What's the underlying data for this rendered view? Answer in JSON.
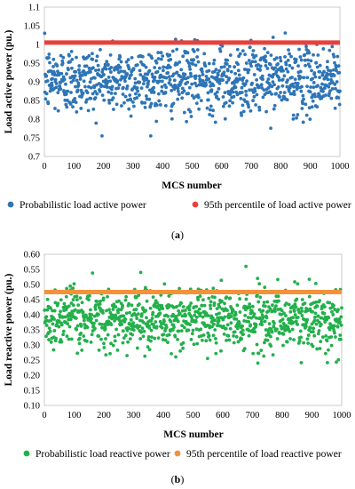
{
  "chart_data": [
    {
      "type": "scatter",
      "panel_label": "(a)",
      "caption_prefix": "(",
      "caption_letter": "a",
      "caption_suffix": ")",
      "xlabel": "MCS number",
      "ylabel": "Load active power (pu.)",
      "xlim": [
        0,
        1000
      ],
      "ylim": [
        0.7,
        1.1
      ],
      "x_ticks": [
        0,
        100,
        200,
        300,
        400,
        500,
        600,
        700,
        800,
        900,
        1000
      ],
      "y_ticks": [
        "0.7",
        "0.75",
        "0.8",
        "0.85",
        "0.9",
        "0.95",
        "1",
        "1.05",
        "1.1"
      ],
      "grid": false,
      "legend_position": "bottom",
      "point_count": 1000,
      "series": [
        {
          "name": "Probabilistic load active power",
          "color": "#2e75b6",
          "distribution": {
            "center": 0.905,
            "spread": 0.045,
            "min": 0.755,
            "max": 1.07
          }
        },
        {
          "name": "95th percentile of load active power",
          "color": "#e8413b",
          "constant": 1.005
        }
      ]
    },
    {
      "type": "scatter",
      "panel_label": "(b)",
      "caption_prefix": "(",
      "caption_letter": "b",
      "caption_suffix": ")",
      "xlabel": "MCS number",
      "ylabel": "Load reactive power (pu.)",
      "xlim": [
        0,
        1000
      ],
      "ylim": [
        0.1,
        0.6
      ],
      "x_ticks": [
        0,
        100,
        200,
        300,
        400,
        500,
        600,
        700,
        800,
        900,
        1000
      ],
      "y_ticks": [
        "0.10",
        "0.15",
        "0.20",
        "0.25",
        "0.30",
        "0.35",
        "0.40",
        "0.45",
        "0.50",
        "0.55",
        "0.60"
      ],
      "grid": false,
      "legend_position": "bottom",
      "point_count": 1000,
      "series": [
        {
          "name": "Probabilistic load reactive power",
          "color": "#22b04b",
          "distribution": {
            "center": 0.385,
            "spread": 0.05,
            "min": 0.24,
            "max": 0.56
          }
        },
        {
          "name": "95th percentile of load reactive power",
          "color": "#f4913b",
          "constant": 0.475
        }
      ]
    }
  ]
}
